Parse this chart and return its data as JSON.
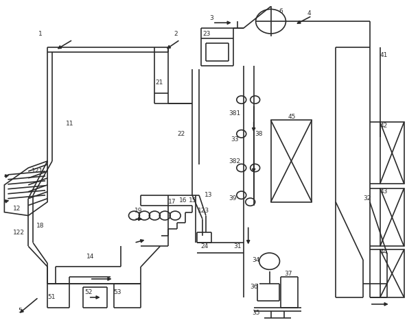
{
  "bg": "#ffffff",
  "lc": "#2a2a2a",
  "lw": 1.2,
  "figsize": [
    5.93,
    4.83
  ],
  "dpi": 100
}
